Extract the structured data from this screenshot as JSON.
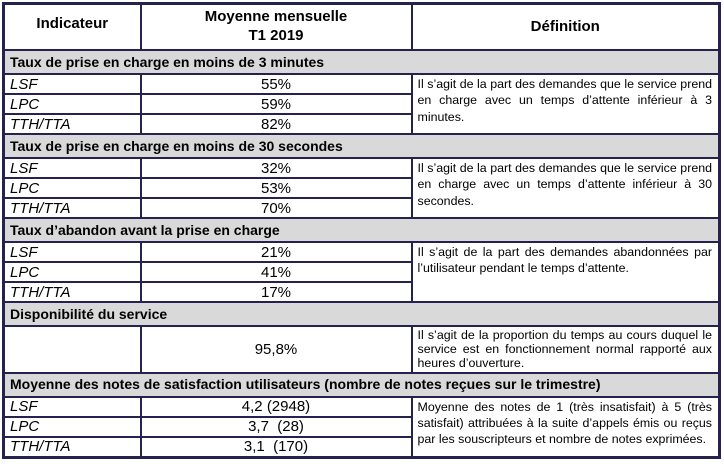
{
  "table": {
    "header": {
      "col1": "Indicateur",
      "col2_line1": "Moyenne mensuelle",
      "col2_line2": "T1 2019",
      "col3": "Définition"
    },
    "sections": [
      {
        "title": "Taux de prise en charge en moins de 3 minutes",
        "definition": "Il s’agit de la part des demandes que le service prend en charge avec un temps d’attente inférieur à 3 minutes.",
        "rows": [
          {
            "label": "LSF",
            "value": "55%"
          },
          {
            "label": "LPC",
            "value": "59%"
          },
          {
            "label": "TTH/TTA",
            "value": "82%"
          }
        ]
      },
      {
        "title": "Taux de prise en charge en moins de 30 secondes",
        "definition": "Il s’agit de la part des demandes que le service prend en charge avec un temps d’attente inférieur à 30 secondes.",
        "rows": [
          {
            "label": "LSF",
            "value": "32%"
          },
          {
            "label": "LPC",
            "value": "53%"
          },
          {
            "label": "TTH/TTA",
            "value": "70%"
          }
        ]
      },
      {
        "title": "Taux d’abandon avant la prise en charge",
        "definition": "Il s’agit de la part des demandes abandonnées par l’utilisateur pendant le  temps d’attente.",
        "rows": [
          {
            "label": "LSF",
            "value": "21%"
          },
          {
            "label": "LPC",
            "value": "41%"
          },
          {
            "label": "TTH/TTA",
            "value": "17%"
          }
        ]
      },
      {
        "title": "Disponibilité du service",
        "definition": "Il s’agit de la proportion du temps au cours duquel le service est en fonctionnement normal rapporté aux  heures d’ouverture.",
        "rows": [
          {
            "label": "",
            "value": "95,8%"
          }
        ]
      },
      {
        "title": "Moyenne des notes de satisfaction utilisateurs (nombre de notes reçues sur le trimestre)",
        "definition": "Moyenne des notes de 1 (très insatisfait) à 5 (très satisfait) attribuées à la suite d’appels émis ou reçus par les souscripteurs et nombre de notes exprimées.",
        "rows": [
          {
            "label": "LSF",
            "value": "4,2 (2948)"
          },
          {
            "label": "LPC",
            "value": "3,7  (28)"
          },
          {
            "label": "TTH/TTA",
            "value": "3,1  (170)"
          }
        ]
      }
    ]
  },
  "colors": {
    "border": "#252250",
    "banner_background": "#D9D9D9",
    "text": "#000000"
  }
}
